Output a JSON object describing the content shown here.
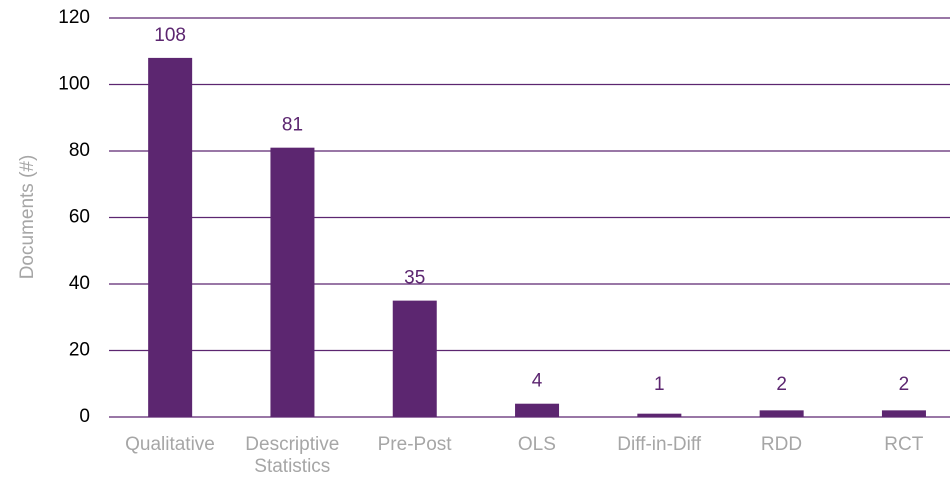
{
  "chart_data": {
    "type": "bar",
    "y_axis_label": "Documents (#)",
    "categories": [
      "Qualitative",
      "Descriptive Statistics",
      "Pre-Post",
      "OLS",
      "Diff-in-Diff",
      "RDD",
      "RCT"
    ],
    "values": [
      108,
      81,
      35,
      4,
      1,
      2,
      2
    ],
    "color": "#5c2670",
    "ylim": [
      0,
      120
    ],
    "yticks": [
      0,
      20,
      40,
      60,
      80,
      100,
      120
    ],
    "grid": true
  }
}
